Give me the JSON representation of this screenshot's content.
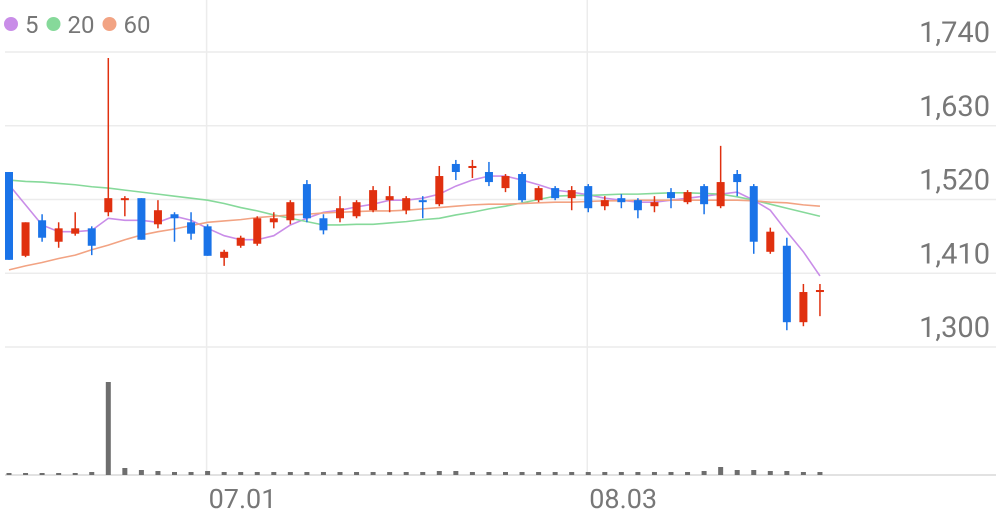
{
  "chart_data": {
    "type": "candlestick",
    "categories": [
      null,
      null,
      null,
      null,
      null,
      null,
      null,
      null,
      null,
      null,
      null,
      null,
      "07.01",
      null,
      null,
      null,
      null,
      null,
      null,
      null,
      null,
      null,
      null,
      null,
      null,
      null,
      null,
      null,
      null,
      null,
      null,
      null,
      null,
      null,
      null,
      "08.03",
      null,
      null,
      null,
      null,
      null,
      null,
      null,
      null,
      null,
      null,
      null,
      null,
      null,
      null
    ],
    "open": [
      1561,
      1436,
      1489,
      1457,
      1469,
      1477,
      1501,
      1519,
      1522,
      1483,
      1498,
      1486,
      1480,
      1433,
      1451,
      1454,
      1486,
      1489,
      1543,
      1492,
      1492,
      1495,
      1504,
      1519,
      1504,
      1519,
      1513,
      1573,
      1567,
      1561,
      1537,
      1558,
      1519,
      1537,
      1522,
      1540,
      1510,
      1522,
      1519,
      1510,
      1531,
      1516,
      1540,
      1510,
      1558,
      1540,
      1442,
      1451,
      1337,
      1382
    ],
    "high": [
      1561,
      1486,
      1498,
      1486,
      1501,
      1480,
      1731,
      1525,
      1522,
      1519,
      1501,
      1501,
      1483,
      1445,
      1466,
      1495,
      1501,
      1519,
      1549,
      1498,
      1525,
      1519,
      1540,
      1540,
      1525,
      1525,
      1570,
      1579,
      1579,
      1576,
      1558,
      1561,
      1540,
      1540,
      1540,
      1543,
      1525,
      1528,
      1522,
      1525,
      1537,
      1534,
      1543,
      1600,
      1564,
      1543,
      1478,
      1463,
      1394,
      1394
    ],
    "low": [
      1430,
      1434,
      1457,
      1448,
      1466,
      1437,
      1495,
      1495,
      1460,
      1477,
      1457,
      1460,
      1436,
      1421,
      1448,
      1451,
      1477,
      1483,
      1486,
      1468,
      1486,
      1492,
      1501,
      1501,
      1498,
      1492,
      1510,
      1549,
      1552,
      1540,
      1531,
      1516,
      1516,
      1519,
      1504,
      1501,
      1504,
      1507,
      1492,
      1501,
      1507,
      1513,
      1498,
      1507,
      1525,
      1439,
      1439,
      1325,
      1331,
      1346
    ],
    "close": [
      1430,
      1486,
      1463,
      1477,
      1477,
      1451,
      1522,
      1522,
      1460,
      1504,
      1492,
      1469,
      1436,
      1442,
      1463,
      1492,
      1492,
      1516,
      1492,
      1474,
      1507,
      1516,
      1534,
      1525,
      1522,
      1516,
      1555,
      1561,
      1570,
      1546,
      1555,
      1519,
      1537,
      1522,
      1534,
      1507,
      1519,
      1516,
      1504,
      1516,
      1522,
      1531,
      1513,
      1546,
      1546,
      1457,
      1472,
      1337,
      1382,
      1385
    ],
    "up_color": "#e0300f",
    "down_color": "#1a73e8",
    "series": [
      {
        "name": "5",
        "color": "#c98de8",
        "values": [
          1542,
          1512,
          1482,
          1472,
          1472,
          1474,
          1492,
          1489,
          1489,
          1486,
          1495,
          1489,
          1477,
          1466,
          1460,
          1460,
          1466,
          1482,
          1492,
          1501,
          1504,
          1509,
          1513,
          1519,
          1519,
          1522,
          1528,
          1540,
          1549,
          1555,
          1555,
          1549,
          1542,
          1534,
          1531,
          1527,
          1522,
          1519,
          1516,
          1516,
          1519,
          1522,
          1525,
          1528,
          1531,
          1519,
          1504,
          1472,
          1442,
          1406
        ]
      },
      {
        "name": "20",
        "color": "#86d99a",
        "values": [
          1549,
          1547,
          1546,
          1544,
          1542,
          1539,
          1537,
          1534,
          1531,
          1528,
          1525,
          1522,
          1519,
          1514,
          1508,
          1503,
          1497,
          1492,
          1487,
          1482,
          1482,
          1483,
          1483,
          1485,
          1487,
          1490,
          1492,
          1497,
          1501,
          1506,
          1510,
          1515,
          1520,
          1525,
          1526,
          1526,
          1527,
          1528,
          1528,
          1529,
          1530,
          1530,
          1529,
          1528,
          1524,
          1519,
          1513,
          1507,
          1501,
          1495
        ]
      },
      {
        "name": "60",
        "color": "#f2a383",
        "values": [
          1415,
          1421,
          1426,
          1432,
          1437,
          1445,
          1452,
          1460,
          1467,
          1472,
          1476,
          1481,
          1486,
          1488,
          1490,
          1493,
          1495,
          1497,
          1498,
          1500,
          1501,
          1502,
          1503,
          1503,
          1504,
          1506,
          1508,
          1510,
          1512,
          1513,
          1513,
          1514,
          1515,
          1516,
          1516,
          1517,
          1518,
          1518,
          1519,
          1519,
          1519,
          1519,
          1519,
          1519,
          1519,
          1518,
          1516,
          1515,
          1512,
          1510
        ]
      }
    ],
    "volume": [
      2,
      2,
      2,
      2,
      2,
      3,
      93,
      7,
      5,
      4,
      3,
      3,
      4,
      3,
      3,
      3,
      3,
      3,
      3,
      3,
      3,
      3,
      3,
      3,
      3,
      3,
      4,
      4,
      3,
      3,
      3,
      3,
      3,
      3,
      3,
      3,
      3,
      3,
      3,
      3,
      3,
      3,
      4,
      8,
      5,
      5,
      4,
      4,
      3,
      3
    ],
    "volume_lim": [
      0,
      100
    ],
    "volume_color": "#6e6e6e",
    "ylim": [
      1300,
      1740
    ],
    "yticks": [
      {
        "value": 1300,
        "label": "1,300"
      },
      {
        "value": 1410,
        "label": "1,410"
      },
      {
        "value": 1520,
        "label": "1,520"
      },
      {
        "value": 1630,
        "label": "1,630"
      },
      {
        "value": 1740,
        "label": "1,740"
      }
    ],
    "grid": true
  }
}
